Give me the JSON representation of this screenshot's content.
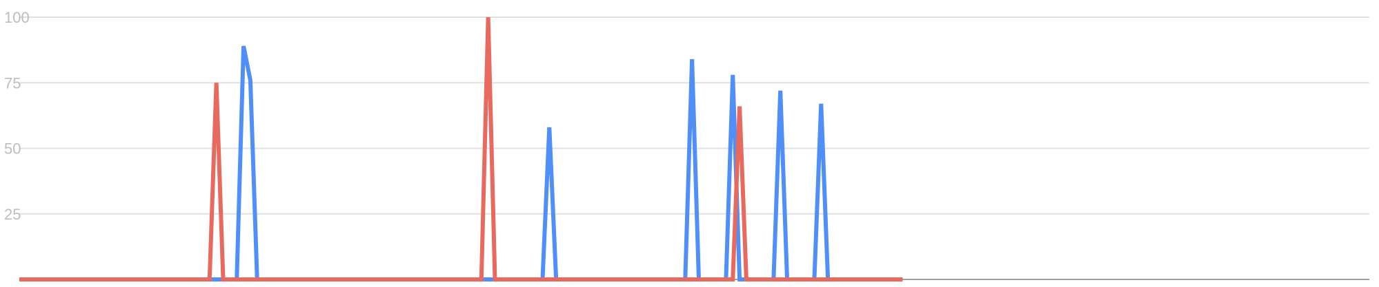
{
  "chart_data": {
    "type": "line",
    "title": "",
    "xlabel": "",
    "ylabel": "",
    "ylim": [
      0,
      100
    ],
    "yticks": [
      "100",
      "75",
      "50",
      "25"
    ],
    "ytick_values": [
      100,
      75,
      50,
      25
    ],
    "x_count": 131,
    "grid": true,
    "legend": "none",
    "series": [
      {
        "color": "#4f8ff7",
        "spikes": [
          {
            "x": 33,
            "y": 89
          },
          {
            "x": 34,
            "y": 76
          },
          {
            "x": 78,
            "y": 58
          },
          {
            "x": 99,
            "y": 84
          },
          {
            "x": 105,
            "y": 78
          },
          {
            "x": 112,
            "y": 72
          },
          {
            "x": 118,
            "y": 67
          }
        ]
      },
      {
        "color": "#e86a5f",
        "spikes": [
          {
            "x": 29,
            "y": 75
          },
          {
            "x": 69,
            "y": 100
          },
          {
            "x": 106,
            "y": 66
          }
        ]
      }
    ]
  }
}
